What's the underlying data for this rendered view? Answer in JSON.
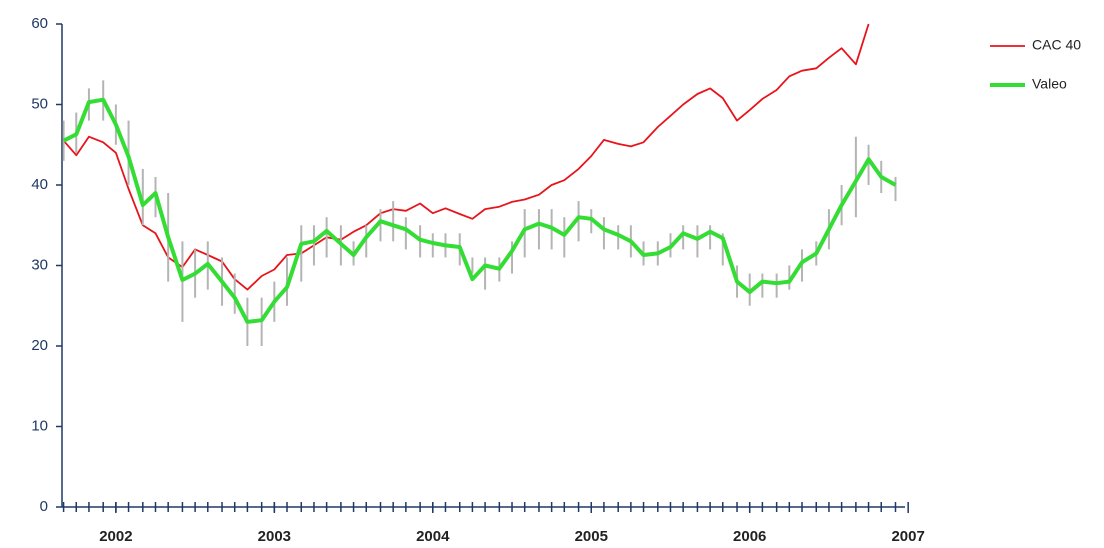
{
  "chart_data": {
    "type": "line",
    "x": [
      2001.67,
      2001.75,
      2001.83,
      2001.92,
      2002.0,
      2002.08,
      2002.17,
      2002.25,
      2002.33,
      2002.42,
      2002.5,
      2002.58,
      2002.67,
      2002.75,
      2002.83,
      2002.92,
      2003.0,
      2003.08,
      2003.17,
      2003.25,
      2003.33,
      2003.42,
      2003.5,
      2003.58,
      2003.67,
      2003.75,
      2003.83,
      2003.92,
      2004.0,
      2004.08,
      2004.17,
      2004.25,
      2004.33,
      2004.42,
      2004.5,
      2004.58,
      2004.67,
      2004.75,
      2004.83,
      2004.92,
      2005.0,
      2005.08,
      2005.17,
      2005.25,
      2005.33,
      2005.42,
      2005.5,
      2005.58,
      2005.67,
      2005.75,
      2005.83,
      2005.92,
      2006.0,
      2006.08,
      2006.17,
      2006.25,
      2006.33,
      2006.42,
      2006.5,
      2006.58,
      2006.67,
      2006.75,
      2006.83,
      2006.92
    ],
    "series": [
      {
        "name": "CAC 40",
        "color": "#e8141b",
        "values": [
          45.5,
          43.7,
          46.0,
          45.3,
          44.0,
          39.5,
          35.0,
          34.0,
          31.0,
          29.8,
          32.0,
          31.3,
          30.5,
          28.3,
          27.0,
          28.7,
          29.5,
          31.3,
          31.5,
          32.5,
          33.5,
          33.2,
          34.2,
          35.0,
          36.5,
          37.0,
          36.8,
          37.7,
          36.5,
          37.1,
          36.4,
          35.8,
          37.0,
          37.3,
          37.9,
          38.2,
          38.8,
          40.0,
          40.6,
          42.0,
          43.6,
          45.6,
          45.1,
          44.8,
          45.3,
          47.2,
          48.6,
          50.0,
          51.3,
          52.0,
          50.8,
          48.0,
          49.3,
          50.7,
          51.8,
          53.5,
          54.2,
          54.5,
          55.8,
          57.0,
          55.0,
          60.0,
          null,
          null
        ]
      },
      {
        "name": "Valeo",
        "color": "#33dd33",
        "values": [
          45.5,
          46.3,
          50.3,
          50.6,
          47.5,
          43.5,
          37.5,
          39.0,
          33.5,
          28.2,
          29.0,
          30.2,
          28.0,
          26.0,
          23.0,
          23.2,
          25.5,
          27.3,
          32.7,
          33.0,
          34.3,
          32.7,
          31.3,
          33.5,
          35.5,
          35.0,
          34.5,
          33.2,
          32.8,
          32.5,
          32.3,
          28.3,
          30.0,
          29.6,
          31.8,
          34.5,
          35.2,
          34.7,
          33.8,
          36.0,
          35.8,
          34.5,
          33.8,
          33.0,
          31.3,
          31.5,
          32.3,
          34.0,
          33.3,
          34.2,
          33.4,
          28.0,
          26.7,
          28.0,
          27.8,
          28.0,
          30.4,
          31.5,
          34.5,
          37.5,
          40.5,
          43.2,
          41.0,
          40.0
        ],
        "low": [
          43,
          44,
          48,
          48,
          45,
          40,
          35,
          36,
          28,
          23,
          26,
          27,
          25,
          24,
          20,
          20,
          23,
          25,
          28,
          30,
          31,
          30,
          30,
          31,
          33,
          33,
          32,
          31,
          31,
          31,
          30,
          29,
          27,
          28,
          29,
          31,
          32,
          32,
          31,
          33,
          34,
          32,
          32,
          31,
          30,
          30,
          31,
          32,
          31,
          32,
          30,
          26,
          25,
          26,
          26,
          27,
          28,
          30,
          32,
          35,
          36,
          40,
          39,
          38
        ],
        "high": [
          48,
          49,
          52,
          53,
          50,
          48,
          42,
          41,
          39,
          33,
          32,
          33,
          31,
          29,
          26,
          26,
          28,
          31,
          35,
          35,
          36,
          35,
          33,
          35,
          37,
          38,
          36,
          35,
          34,
          34,
          34,
          31,
          31,
          31,
          33,
          37,
          37,
          37,
          36,
          38,
          37,
          36,
          35,
          35,
          33,
          33,
          34,
          35,
          35,
          35,
          34,
          30,
          29,
          29,
          29,
          30,
          32,
          33,
          37,
          40,
          46,
          45,
          43,
          41
        ],
        "range_color": "#b4b4b4"
      }
    ],
    "xlim": [
      2001.66,
      2006.98
    ],
    "xticks": [
      2002,
      2003,
      2004,
      2005,
      2006,
      2007
    ],
    "ylim": [
      0,
      60
    ],
    "yticks": [
      0,
      10,
      20,
      30,
      40,
      50,
      60
    ],
    "legend": "top-right"
  }
}
